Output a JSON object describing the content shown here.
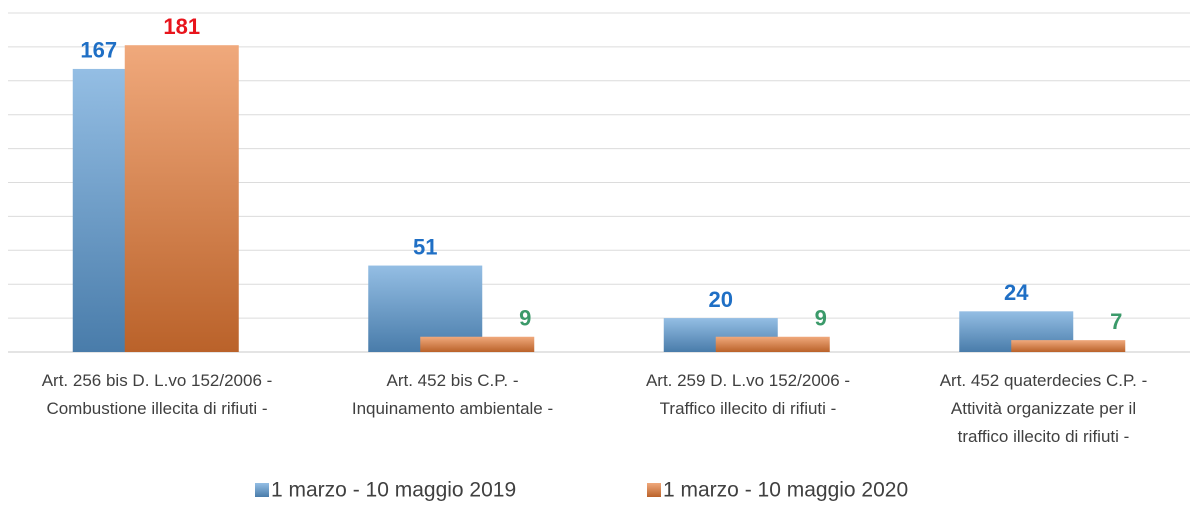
{
  "chart_data": {
    "type": "bar",
    "categories": [
      "Art. 256 bis D. L.vo 152/2006 -\nCombustione illecita di rifiuti -",
      "Art. 452 bis C.P. -\nInquinamento ambientale -",
      "Art. 259 D. L.vo 152/2006 -\nTraffico illecito di rifiuti -",
      "Art. 452 quaterdecies C.P. -\nAttività organizzate per il\ntraffico illecito di rifiuti -"
    ],
    "series": [
      {
        "name": "1 marzo - 10 maggio 2019",
        "color": "#5b9bd5",
        "values": [
          167,
          51,
          20,
          24
        ],
        "value_label_colors": [
          "#1f6fc5",
          "#1f6fc5",
          "#1f6fc5",
          "#1f6fc5"
        ]
      },
      {
        "name": "1 marzo - 10 maggio 2020",
        "color": "#e87a35",
        "values": [
          181,
          9,
          9,
          7
        ],
        "value_label_colors": [
          "#e8141c",
          "#3b9a6a",
          "#3b9a6a",
          "#3b9a6a"
        ]
      }
    ],
    "ylim": [
      0,
      200
    ],
    "yticks": [
      0,
      20,
      40,
      60,
      80,
      100,
      120,
      140,
      160,
      180,
      200
    ],
    "grid": true,
    "legend": "bottom"
  }
}
